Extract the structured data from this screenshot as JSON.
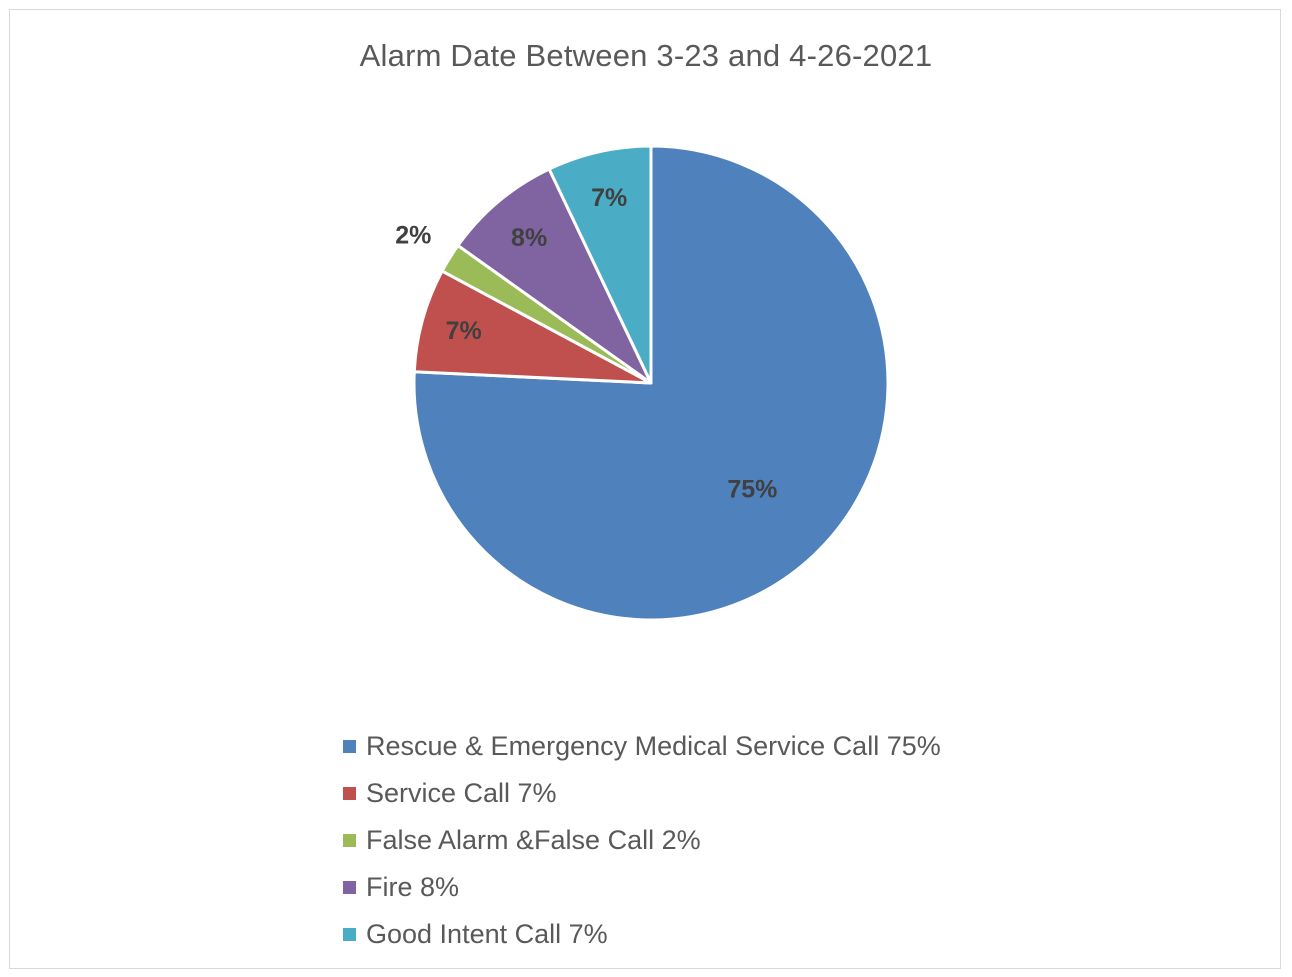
{
  "chart_data": {
    "type": "pie",
    "title": "Alarm Date Between 3-23 and 4-26-2021",
    "categories": [
      "Rescue & Emergency Medical Service Call",
      "Service Call",
      "False Alarm &False Call",
      "Fire",
      "Good Intent Call"
    ],
    "values": [
      75,
      7,
      2,
      8,
      7
    ],
    "data_labels": [
      "75%",
      "7%",
      "2%",
      "8%",
      "7%"
    ],
    "legend": [
      "Rescue & Emergency Medical Service Call 75%",
      "Service Call 7%",
      "False Alarm &False Call 2%",
      "Fire 8%",
      "Good Intent Call 7%"
    ],
    "colors": [
      "#4f81bd",
      "#c0504d",
      "#9bbb59",
      "#8064a2",
      "#4bacc6"
    ],
    "legend_position": "bottom",
    "start_angle": "12 o'clock",
    "direction": "clockwise"
  }
}
